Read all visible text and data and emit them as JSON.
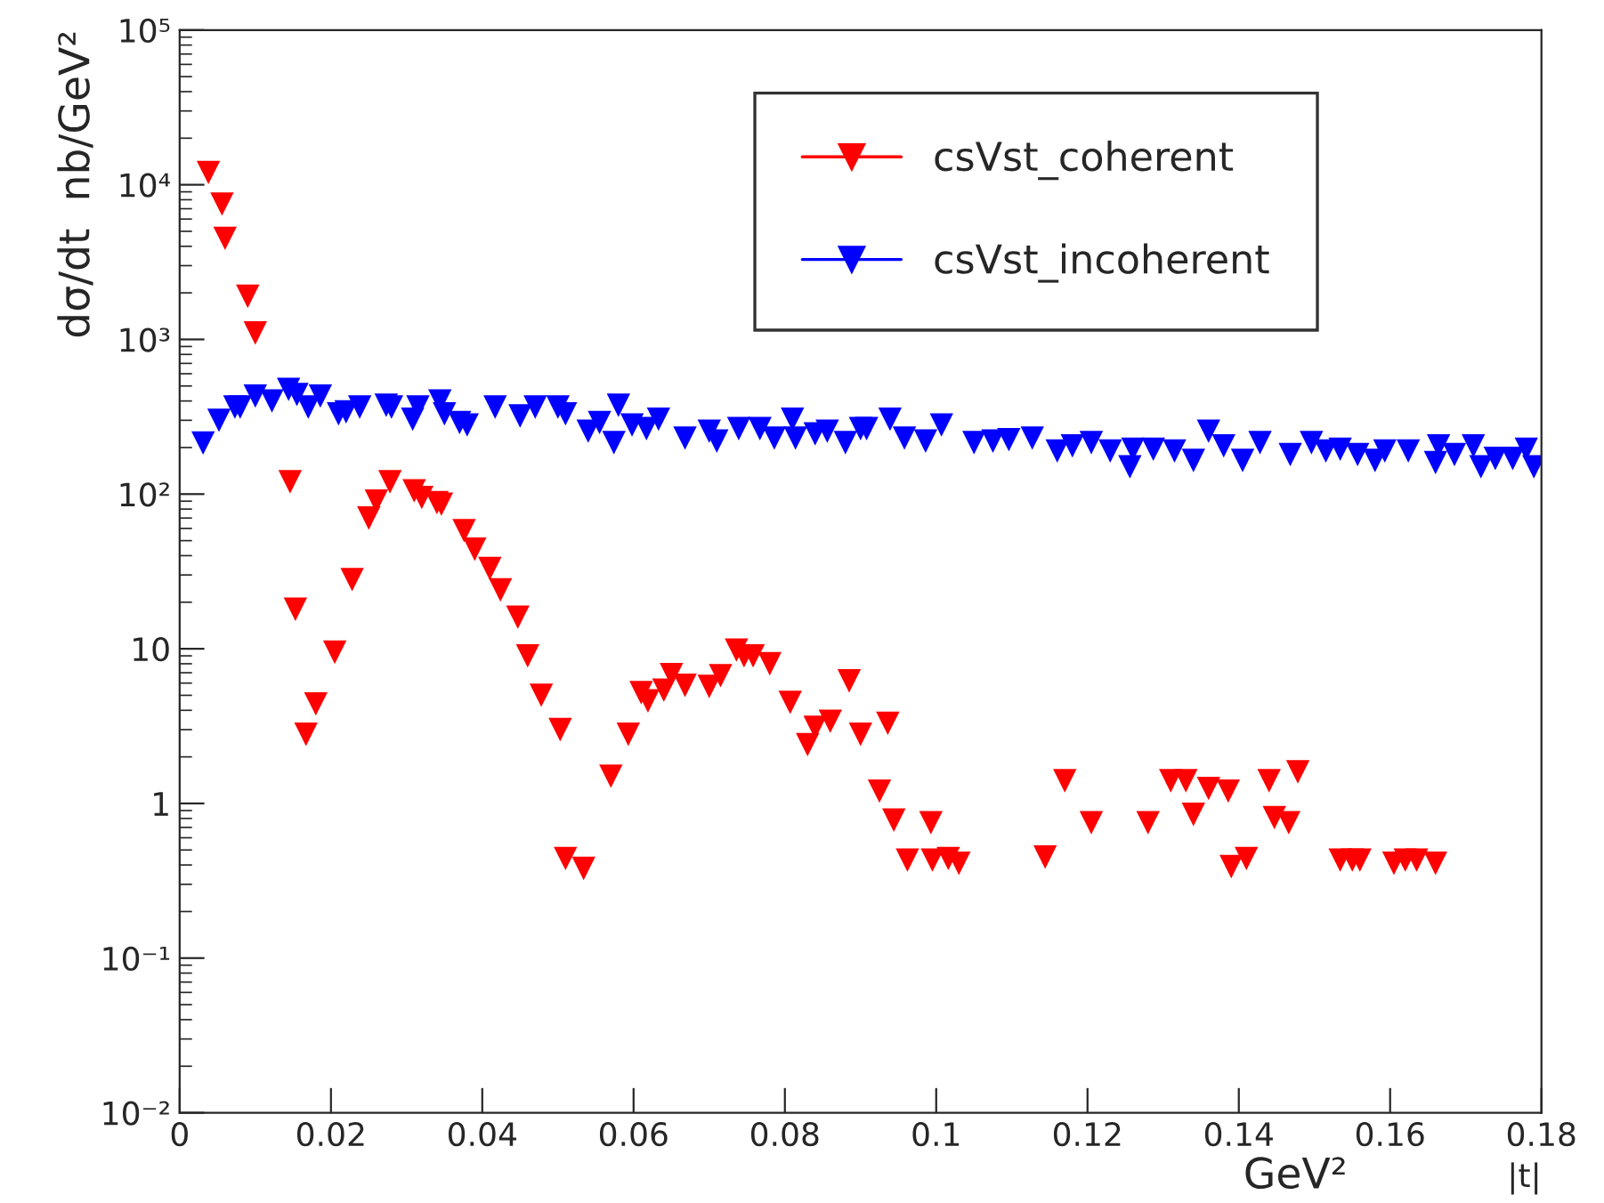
{
  "chart_data": {
    "type": "scatter",
    "xlabel": "|t|",
    "ylabel": "dσ/dt  nb/GeV²",
    "annotations": [
      "GeV²"
    ],
    "xlim": [
      0,
      0.18
    ],
    "xticks": [
      0,
      0.02,
      0.04,
      0.06,
      0.08,
      0.1,
      0.12,
      0.14,
      0.16,
      0.18
    ],
    "log": "y",
    "ylim": [
      0.01,
      100000
    ],
    "yticks": [
      {
        "value": 0.01,
        "label": "10⁻²"
      },
      {
        "value": 0.1,
        "label": "10⁻¹"
      },
      1,
      10,
      {
        "value": 100,
        "label": "10²"
      },
      {
        "value": 1000,
        "label": "10³"
      },
      {
        "value": 10000,
        "label": "10⁴"
      },
      {
        "value": 100000,
        "label": "10⁵"
      }
    ],
    "grid": false,
    "legend": "top right",
    "marker": "triangle",
    "series": [
      {
        "name": "csVst_coherent",
        "color": "#ff0000",
        "x": [
          0.0038,
          0.0056,
          0.006,
          0.009,
          0.01,
          0.0146,
          0.0153,
          0.0167,
          0.018,
          0.0205,
          0.0228,
          0.025,
          0.026,
          0.0278,
          0.031,
          0.032,
          0.034,
          0.0346,
          0.0376,
          0.039,
          0.041,
          0.0424,
          0.0447,
          0.046,
          0.0478,
          0.0503,
          0.051,
          0.0534,
          0.057,
          0.0593,
          0.061,
          0.0619,
          0.064,
          0.065,
          0.0668,
          0.07,
          0.0715,
          0.0736,
          0.0746,
          0.0758,
          0.078,
          0.0807,
          0.083,
          0.084,
          0.086,
          0.0885,
          0.09,
          0.0925,
          0.0936,
          0.0944,
          0.0962,
          0.0993,
          0.0995,
          0.1016,
          0.103,
          0.1144,
          0.117,
          0.1205,
          0.128,
          0.131,
          0.133,
          0.134,
          0.136,
          0.1386,
          0.139,
          0.141,
          0.144,
          0.1447,
          0.1466,
          0.1478,
          0.1534,
          0.155,
          0.156,
          0.1605,
          0.162,
          0.1635,
          0.166
        ],
        "values": [
          12000,
          7500,
          4500,
          1900,
          1100,
          120,
          18,
          2.8,
          4.4,
          9.5,
          28,
          70,
          90,
          120,
          105,
          95,
          88,
          86,
          58,
          44,
          33,
          24,
          16,
          9,
          5,
          3,
          0.44,
          0.38,
          1.5,
          2.8,
          5.2,
          4.6,
          5.4,
          6.8,
          5.8,
          5.7,
          6.7,
          9.8,
          9,
          9,
          8,
          4.5,
          2.4,
          3.1,
          3.4,
          6.2,
          2.8,
          1.2,
          3.3,
          0.78,
          0.43,
          0.75,
          0.43,
          0.44,
          0.41,
          0.45,
          1.4,
          0.75,
          0.75,
          1.4,
          1.4,
          0.85,
          1.25,
          1.2,
          0.39,
          0.44,
          1.4,
          0.81,
          0.75,
          1.6,
          0.43,
          0.43,
          0.43,
          0.41,
          0.43,
          0.43,
          0.41
        ]
      },
      {
        "name": "csVst_incoherent",
        "color": "#0000ff",
        "x": [
          0.0031,
          0.0052,
          0.0073,
          0.008,
          0.01,
          0.0122,
          0.0144,
          0.0155,
          0.017,
          0.0186,
          0.021,
          0.022,
          0.0238,
          0.0273,
          0.028,
          0.0308,
          0.0315,
          0.0344,
          0.035,
          0.037,
          0.038,
          0.0417,
          0.045,
          0.047,
          0.05,
          0.051,
          0.054,
          0.0555,
          0.0574,
          0.058,
          0.0598,
          0.0617,
          0.0633,
          0.0668,
          0.07,
          0.071,
          0.0739,
          0.0767,
          0.0786,
          0.081,
          0.0814,
          0.084,
          0.0856,
          0.088,
          0.09,
          0.0908,
          0.0939,
          0.0958,
          0.0986,
          0.1007,
          0.105,
          0.1075,
          0.1096,
          0.1127,
          0.116,
          0.118,
          0.1205,
          0.123,
          0.1256,
          0.126,
          0.1287,
          0.1315,
          0.134,
          0.136,
          0.138,
          0.1405,
          0.1428,
          0.1468,
          0.1496,
          0.1515,
          0.1534,
          0.1557,
          0.158,
          0.1593,
          0.1624,
          0.166,
          0.1664,
          0.1685,
          0.171,
          0.172,
          0.1739,
          0.1762,
          0.178,
          0.179
        ],
        "values": [
          214,
          300,
          365,
          365,
          430,
          400,
          475,
          440,
          365,
          430,
          330,
          340,
          365,
          375,
          365,
          305,
          365,
          400,
          330,
          290,
          280,
          365,
          320,
          365,
          365,
          330,
          255,
          290,
          215,
          375,
          280,
          265,
          305,
          230,
          255,
          220,
          265,
          265,
          230,
          305,
          230,
          245,
          255,
          215,
          265,
          265,
          305,
          230,
          220,
          280,
          215,
          220,
          225,
          230,
          190,
          205,
          215,
          190,
          150,
          195,
          195,
          190,
          165,
          255,
          205,
          165,
          215,
          180,
          215,
          190,
          195,
          180,
          165,
          190,
          190,
          160,
          205,
          180,
          205,
          150,
          170,
          170,
          195,
          150
        ]
      }
    ]
  }
}
